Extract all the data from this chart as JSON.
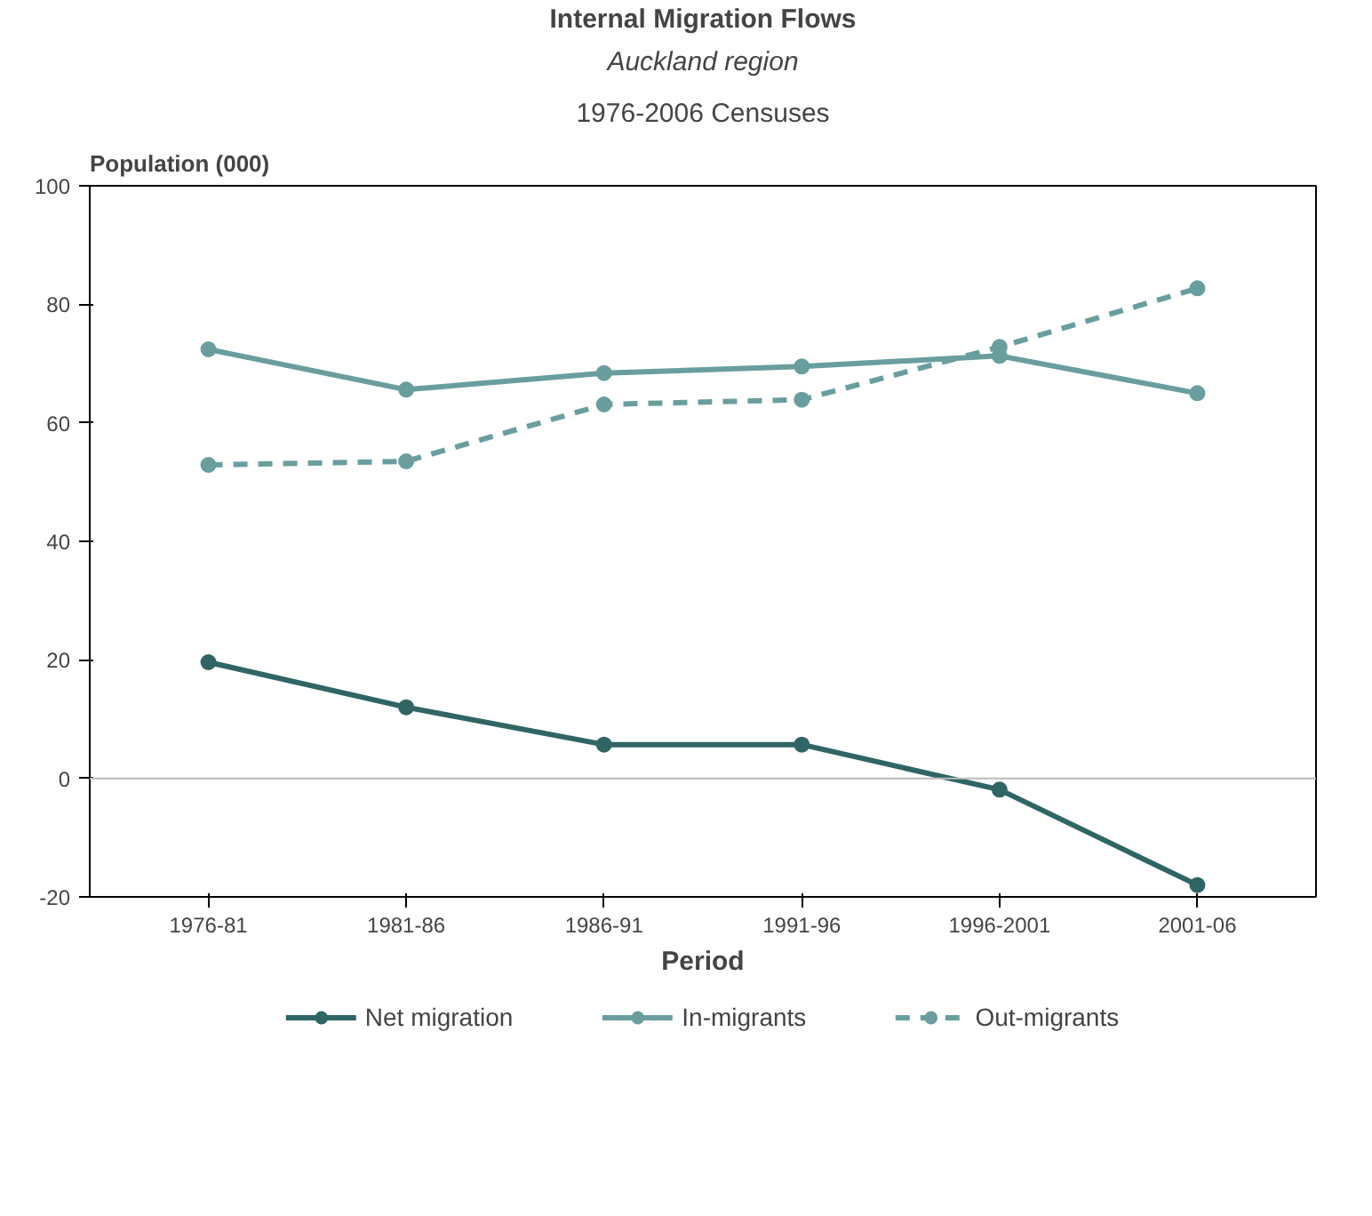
{
  "chart_data": {
    "type": "line",
    "title": "Internal Migration Flows",
    "subtitle": "Auckland region",
    "annotations": [
      "1976-2006 Censuses"
    ],
    "xlabel": "Period",
    "ylabel": "Population (000)",
    "categories": [
      "1976-81",
      "1981-86",
      "1986-91",
      "1991-96",
      "1996-2001",
      "2001-06"
    ],
    "series": [
      {
        "name": "Net migration",
        "color": "#2f6565",
        "line_style": "solid",
        "values": [
          19.6,
          12,
          5.7,
          5.7,
          -1.9,
          -18
        ]
      },
      {
        "name": "In-migrants",
        "color": "#6a9e9e",
        "line_style": "solid",
        "values": [
          72.4,
          65.6,
          68.4,
          69.5,
          71.3,
          65
        ]
      },
      {
        "name": "Out-migrants",
        "color": "#6a9e9e",
        "line_style": "dashed",
        "values": [
          52.9,
          53.5,
          63.1,
          63.9,
          72.8,
          82.7
        ]
      }
    ],
    "ylim": [
      -20,
      100
    ],
    "yticks": [
      -20,
      0,
      20,
      40,
      60,
      80,
      100
    ],
    "grid": false,
    "marker": "circle",
    "legend": "bottom",
    "ref_lines": [
      {
        "axis": "y",
        "value": 0,
        "color": "#bbbbbb"
      }
    ]
  }
}
